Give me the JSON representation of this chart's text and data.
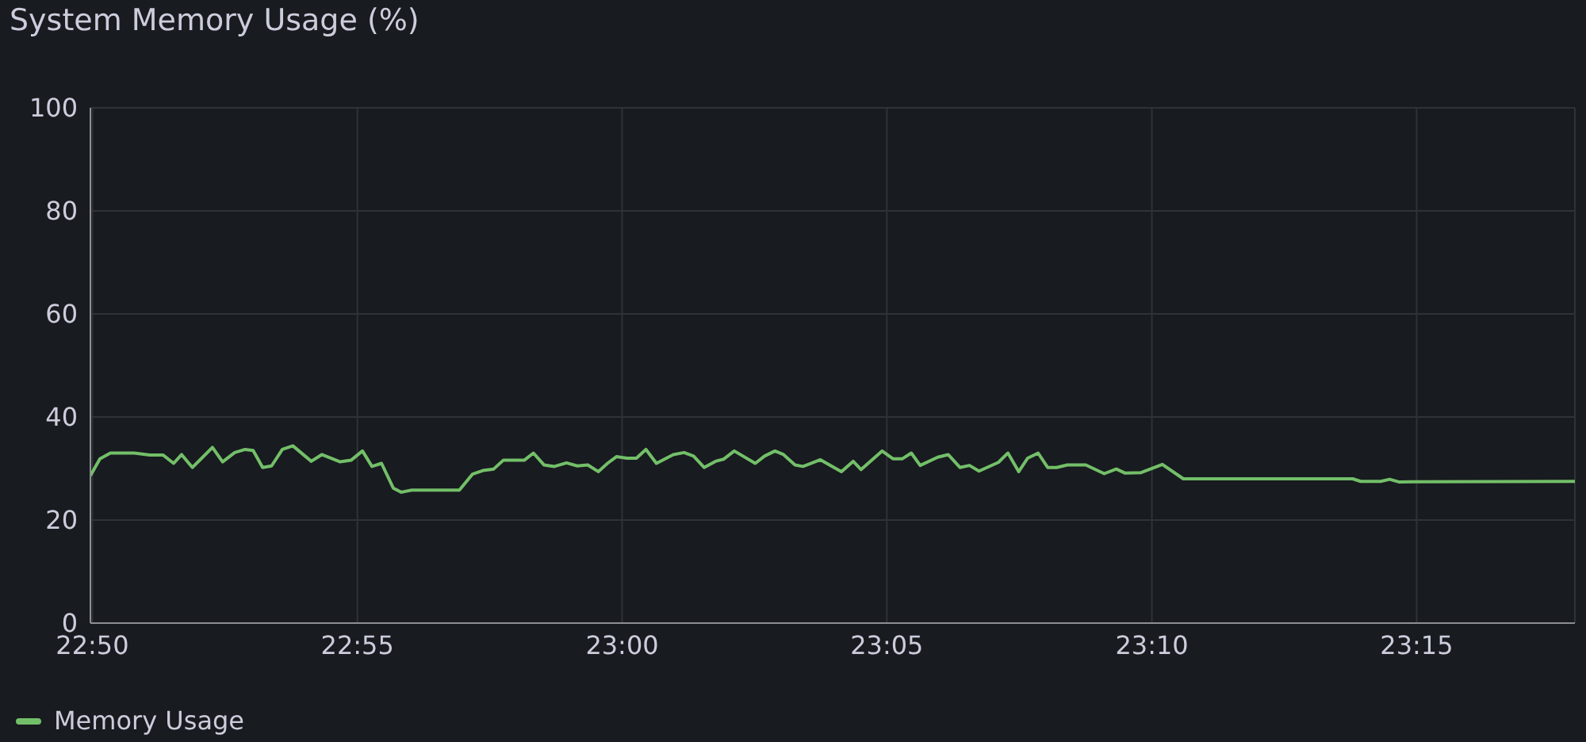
{
  "chart_data": {
    "type": "line",
    "title": "System Memory Usage (%)",
    "x": [
      22.8327,
      22.8357,
      22.839,
      22.8465,
      22.8514,
      22.8556,
      22.8589,
      22.8614,
      22.8648,
      22.8711,
      22.8743,
      22.8781,
      22.8814,
      22.8839,
      22.8869,
      22.8897,
      22.8931,
      22.8964,
      22.9022,
      22.9055,
      22.9113,
      22.9147,
      22.9183,
      22.9213,
      22.9243,
      22.928,
      22.9305,
      22.9338,
      22.9488,
      22.9529,
      22.9562,
      22.9596,
      22.9626,
      22.9692,
      22.9721,
      22.9754,
      22.9787,
      22.9825,
      22.9859,
      22.9892,
      22.9925,
      22.9954,
      22.9982,
      23.0015,
      23.0045,
      23.0075,
      23.0108,
      23.0161,
      23.0195,
      23.0225,
      23.0258,
      23.0294,
      23.0319,
      23.0353,
      23.0419,
      23.0448,
      23.0481,
      23.0508,
      23.0544,
      23.0569,
      23.0624,
      23.069,
      23.0727,
      23.0752,
      23.0818,
      23.0852,
      23.0882,
      23.091,
      23.0938,
      23.0993,
      23.1026,
      23.1063,
      23.1093,
      23.1123,
      23.1184,
      23.1214,
      23.1248,
      23.1276,
      23.1309,
      23.1339,
      23.1367,
      23.1401,
      23.1459,
      23.1517,
      23.1555,
      23.1583,
      23.1633,
      23.17,
      23.1766,
      23.2299,
      23.2324,
      23.2387,
      23.2415,
      23.2444,
      23.2998
    ],
    "series": [
      {
        "name": "Memory Usage",
        "color": "#73bf69",
        "values": [
          28.6,
          31.9,
          33.0,
          33.0,
          32.6,
          32.6,
          31.0,
          32.7,
          30.2,
          34.1,
          31.3,
          33.1,
          33.7,
          33.5,
          30.2,
          30.5,
          33.7,
          34.4,
          31.4,
          32.7,
          31.3,
          31.6,
          33.4,
          30.4,
          31.0,
          26.2,
          25.4,
          25.8,
          25.8,
          28.9,
          29.6,
          29.9,
          31.6,
          31.6,
          33.0,
          30.7,
          30.4,
          31.1,
          30.5,
          30.7,
          29.4,
          31.0,
          32.3,
          32.0,
          32.0,
          33.7,
          31.0,
          32.7,
          33.1,
          32.4,
          30.2,
          31.4,
          31.8,
          33.4,
          31.0,
          32.4,
          33.4,
          32.7,
          30.7,
          30.4,
          31.7,
          29.4,
          31.4,
          29.8,
          33.4,
          31.9,
          31.9,
          33.0,
          30.6,
          32.2,
          32.7,
          30.2,
          30.6,
          29.5,
          31.2,
          33.0,
          29.4,
          32.0,
          33.0,
          30.2,
          30.2,
          30.7,
          30.7,
          29.0,
          29.9,
          29.1,
          29.2,
          30.8,
          28.0,
          28.0,
          27.5,
          27.5,
          27.9,
          27.4,
          27.5
        ]
      }
    ],
    "xlim": [
      22.8327,
      23.2998
    ],
    "xticks": [
      {
        "value": 22.8333,
        "label": "22:50"
      },
      {
        "value": 22.9167,
        "label": "22:55"
      },
      {
        "value": 23,
        "label": "23:00"
      },
      {
        "value": 23.0833,
        "label": "23:05"
      },
      {
        "value": 23.1667,
        "label": "23:10"
      },
      {
        "value": 23.25,
        "label": "23:15"
      }
    ],
    "ylim": [
      0,
      100
    ],
    "yticks": [
      0,
      20,
      40,
      60,
      80,
      100
    ],
    "grid": true,
    "legend": "bottom left",
    "marker": "none"
  }
}
